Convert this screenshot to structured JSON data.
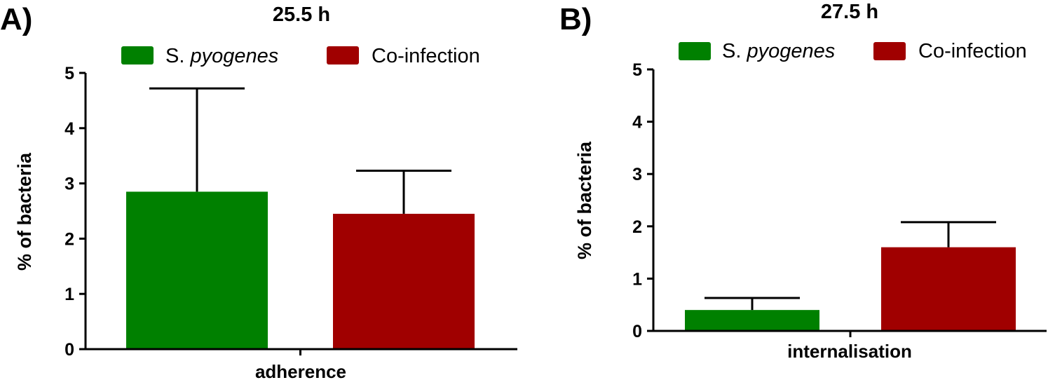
{
  "colors": {
    "s_pyogenes": "#008000",
    "co_infection": "#a00000"
  },
  "chart_data": [
    {
      "type": "bar",
      "panel": "A)",
      "title": "25.5 h",
      "xlabel": "adherence",
      "ylabel": "% of bacteria",
      "ylim": [
        0,
        5
      ],
      "yticks": [
        "0",
        "1",
        "2",
        "3",
        "4",
        "5"
      ],
      "grid": false,
      "legend_position": "top",
      "series": [
        {
          "name_prefix": "S. ",
          "name_italic": "pyogenes",
          "value": 2.85,
          "error": 1.87,
          "color": "#008000"
        },
        {
          "name": "Co-infection",
          "value": 2.45,
          "error": 0.78,
          "color": "#a00000"
        }
      ]
    },
    {
      "type": "bar",
      "panel": "B)",
      "title": "27.5 h",
      "xlabel": "internalisation",
      "ylabel": "% of bacteria",
      "ylim": [
        0,
        5
      ],
      "yticks": [
        "0",
        "1",
        "2",
        "3",
        "4",
        "5"
      ],
      "grid": false,
      "legend_position": "top",
      "series": [
        {
          "name_prefix": "S. ",
          "name_italic": "pyogenes",
          "value": 0.4,
          "error": 0.23,
          "color": "#008000"
        },
        {
          "name": "Co-infection",
          "value": 1.6,
          "error": 0.48,
          "color": "#a00000"
        }
      ]
    }
  ]
}
